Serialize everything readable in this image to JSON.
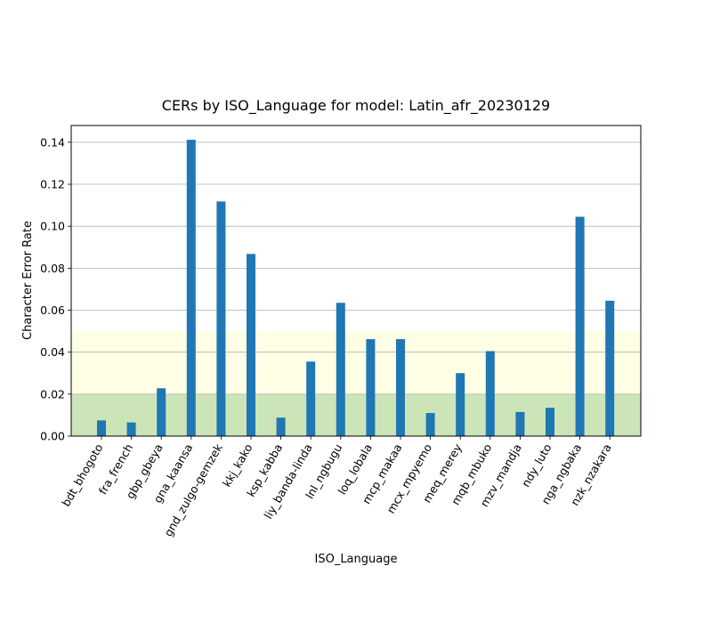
{
  "chart_data": {
    "type": "bar",
    "title": "CERs by ISO_Language for model: Latin_afr_20230129",
    "xlabel": "ISO_Language",
    "ylabel": "Character Error Rate",
    "ylim": [
      0,
      0.148
    ],
    "yticks": [
      "0.00",
      "0.02",
      "0.04",
      "0.06",
      "0.08",
      "0.10",
      "0.12",
      "0.14"
    ],
    "grid": "horizontal",
    "bar_color": "#1f77b4",
    "bands": [
      {
        "from": 0,
        "to": 0.02,
        "color": "#cce5b8"
      },
      {
        "from": 0.02,
        "to": 0.05,
        "color": "#ffffe5"
      }
    ],
    "categories": [
      "bdt_bhogoto",
      "fra_french",
      "gbp_gbeya",
      "gna_kaansa",
      "gnd_zulgo-gemzek",
      "kkj_kako",
      "ksp_kabba",
      "liy_banda-linda",
      "lnl_ngbugu",
      "loq_lobala",
      "mcp_makaa",
      "mcx_mpyemo",
      "meq_merey",
      "mqb_mbuko",
      "mzv_mandja",
      "ndy_luto",
      "nga_ngbaka",
      "nzk_nzakara"
    ],
    "values": [
      0.0075,
      0.0065,
      0.0228,
      0.1412,
      0.1118,
      0.0868,
      0.0088,
      0.0355,
      0.0635,
      0.0462,
      0.0462,
      0.011,
      0.03,
      0.0405,
      0.0115,
      0.0135,
      0.1045,
      0.0645
    ]
  }
}
